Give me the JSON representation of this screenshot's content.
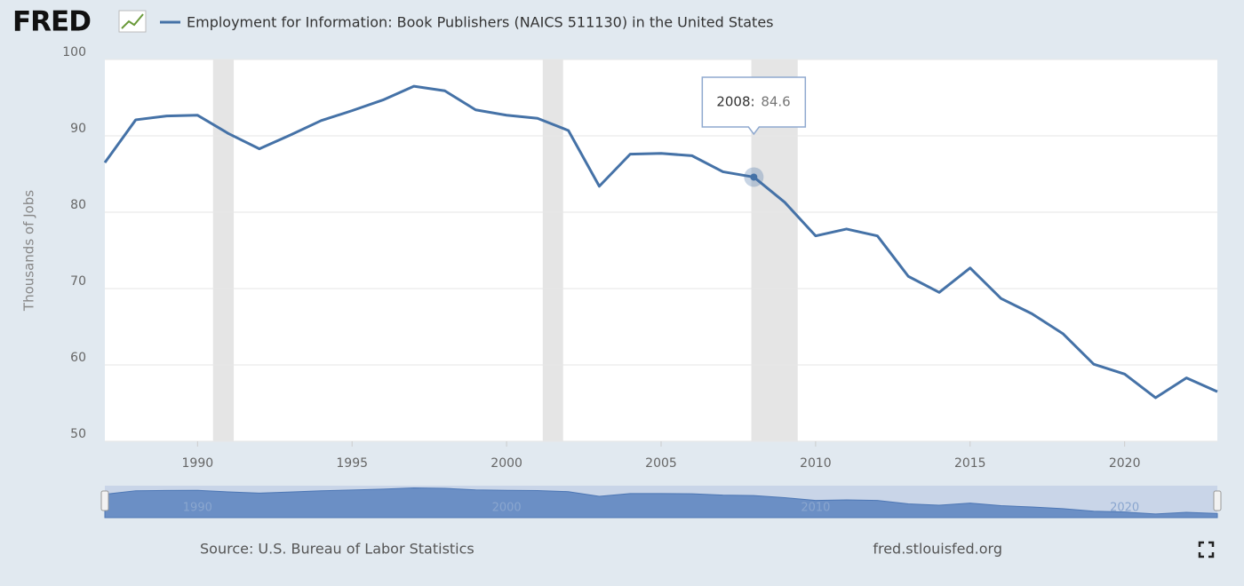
{
  "chart_data": {
    "type": "line",
    "logo": "FRED",
    "y_label": "Thousands of Jobs",
    "source": "Source: U.S. Bureau of Labor Statistics",
    "site": "fred.stlouisfed.org",
    "x": [
      1987,
      1988,
      1989,
      1990,
      1991,
      1992,
      1993,
      1994,
      1995,
      1996,
      1997,
      1998,
      1999,
      2000,
      2001,
      2002,
      2003,
      2004,
      2005,
      2006,
      2007,
      2008,
      2009,
      2010,
      2011,
      2012,
      2013,
      2014,
      2015,
      2016,
      2017,
      2018,
      2019,
      2020,
      2021,
      2022,
      2023
    ],
    "series": [
      {
        "name": "Employment for Information: Book Publishers (NAICS 511130) in the United States",
        "color": "#4572a7",
        "values": [
          86.5,
          92.1,
          92.6,
          92.7,
          90.3,
          88.3,
          90.1,
          92.0,
          93.3,
          94.7,
          96.5,
          95.9,
          93.4,
          92.7,
          92.3,
          90.7,
          83.4,
          87.6,
          87.7,
          87.4,
          85.3,
          84.6,
          81.3,
          76.9,
          77.8,
          76.9,
          71.6,
          69.5,
          72.7,
          68.7,
          66.7,
          64.1,
          60.1,
          58.8,
          55.7,
          58.3,
          56.5
        ]
      }
    ],
    "xlim": [
      1987,
      2023
    ],
    "xticks": [
      1990,
      1995,
      2000,
      2005,
      2010,
      2015,
      2020
    ],
    "ylim": [
      50,
      100
    ],
    "yticks": [
      50,
      60,
      70,
      80,
      90,
      100
    ],
    "grid": true,
    "recessions": [
      {
        "start": 1990.5,
        "end": 1991.17
      },
      {
        "start": 2001.17,
        "end": 2001.83
      },
      {
        "start": 2007.92,
        "end": 2009.42
      }
    ],
    "tooltip": {
      "x": 2008,
      "label": "2008:"
    },
    "navigator_ylim": [
      50,
      100
    ],
    "navigator_xticks": [
      1990,
      2000,
      2010,
      2020
    ]
  }
}
